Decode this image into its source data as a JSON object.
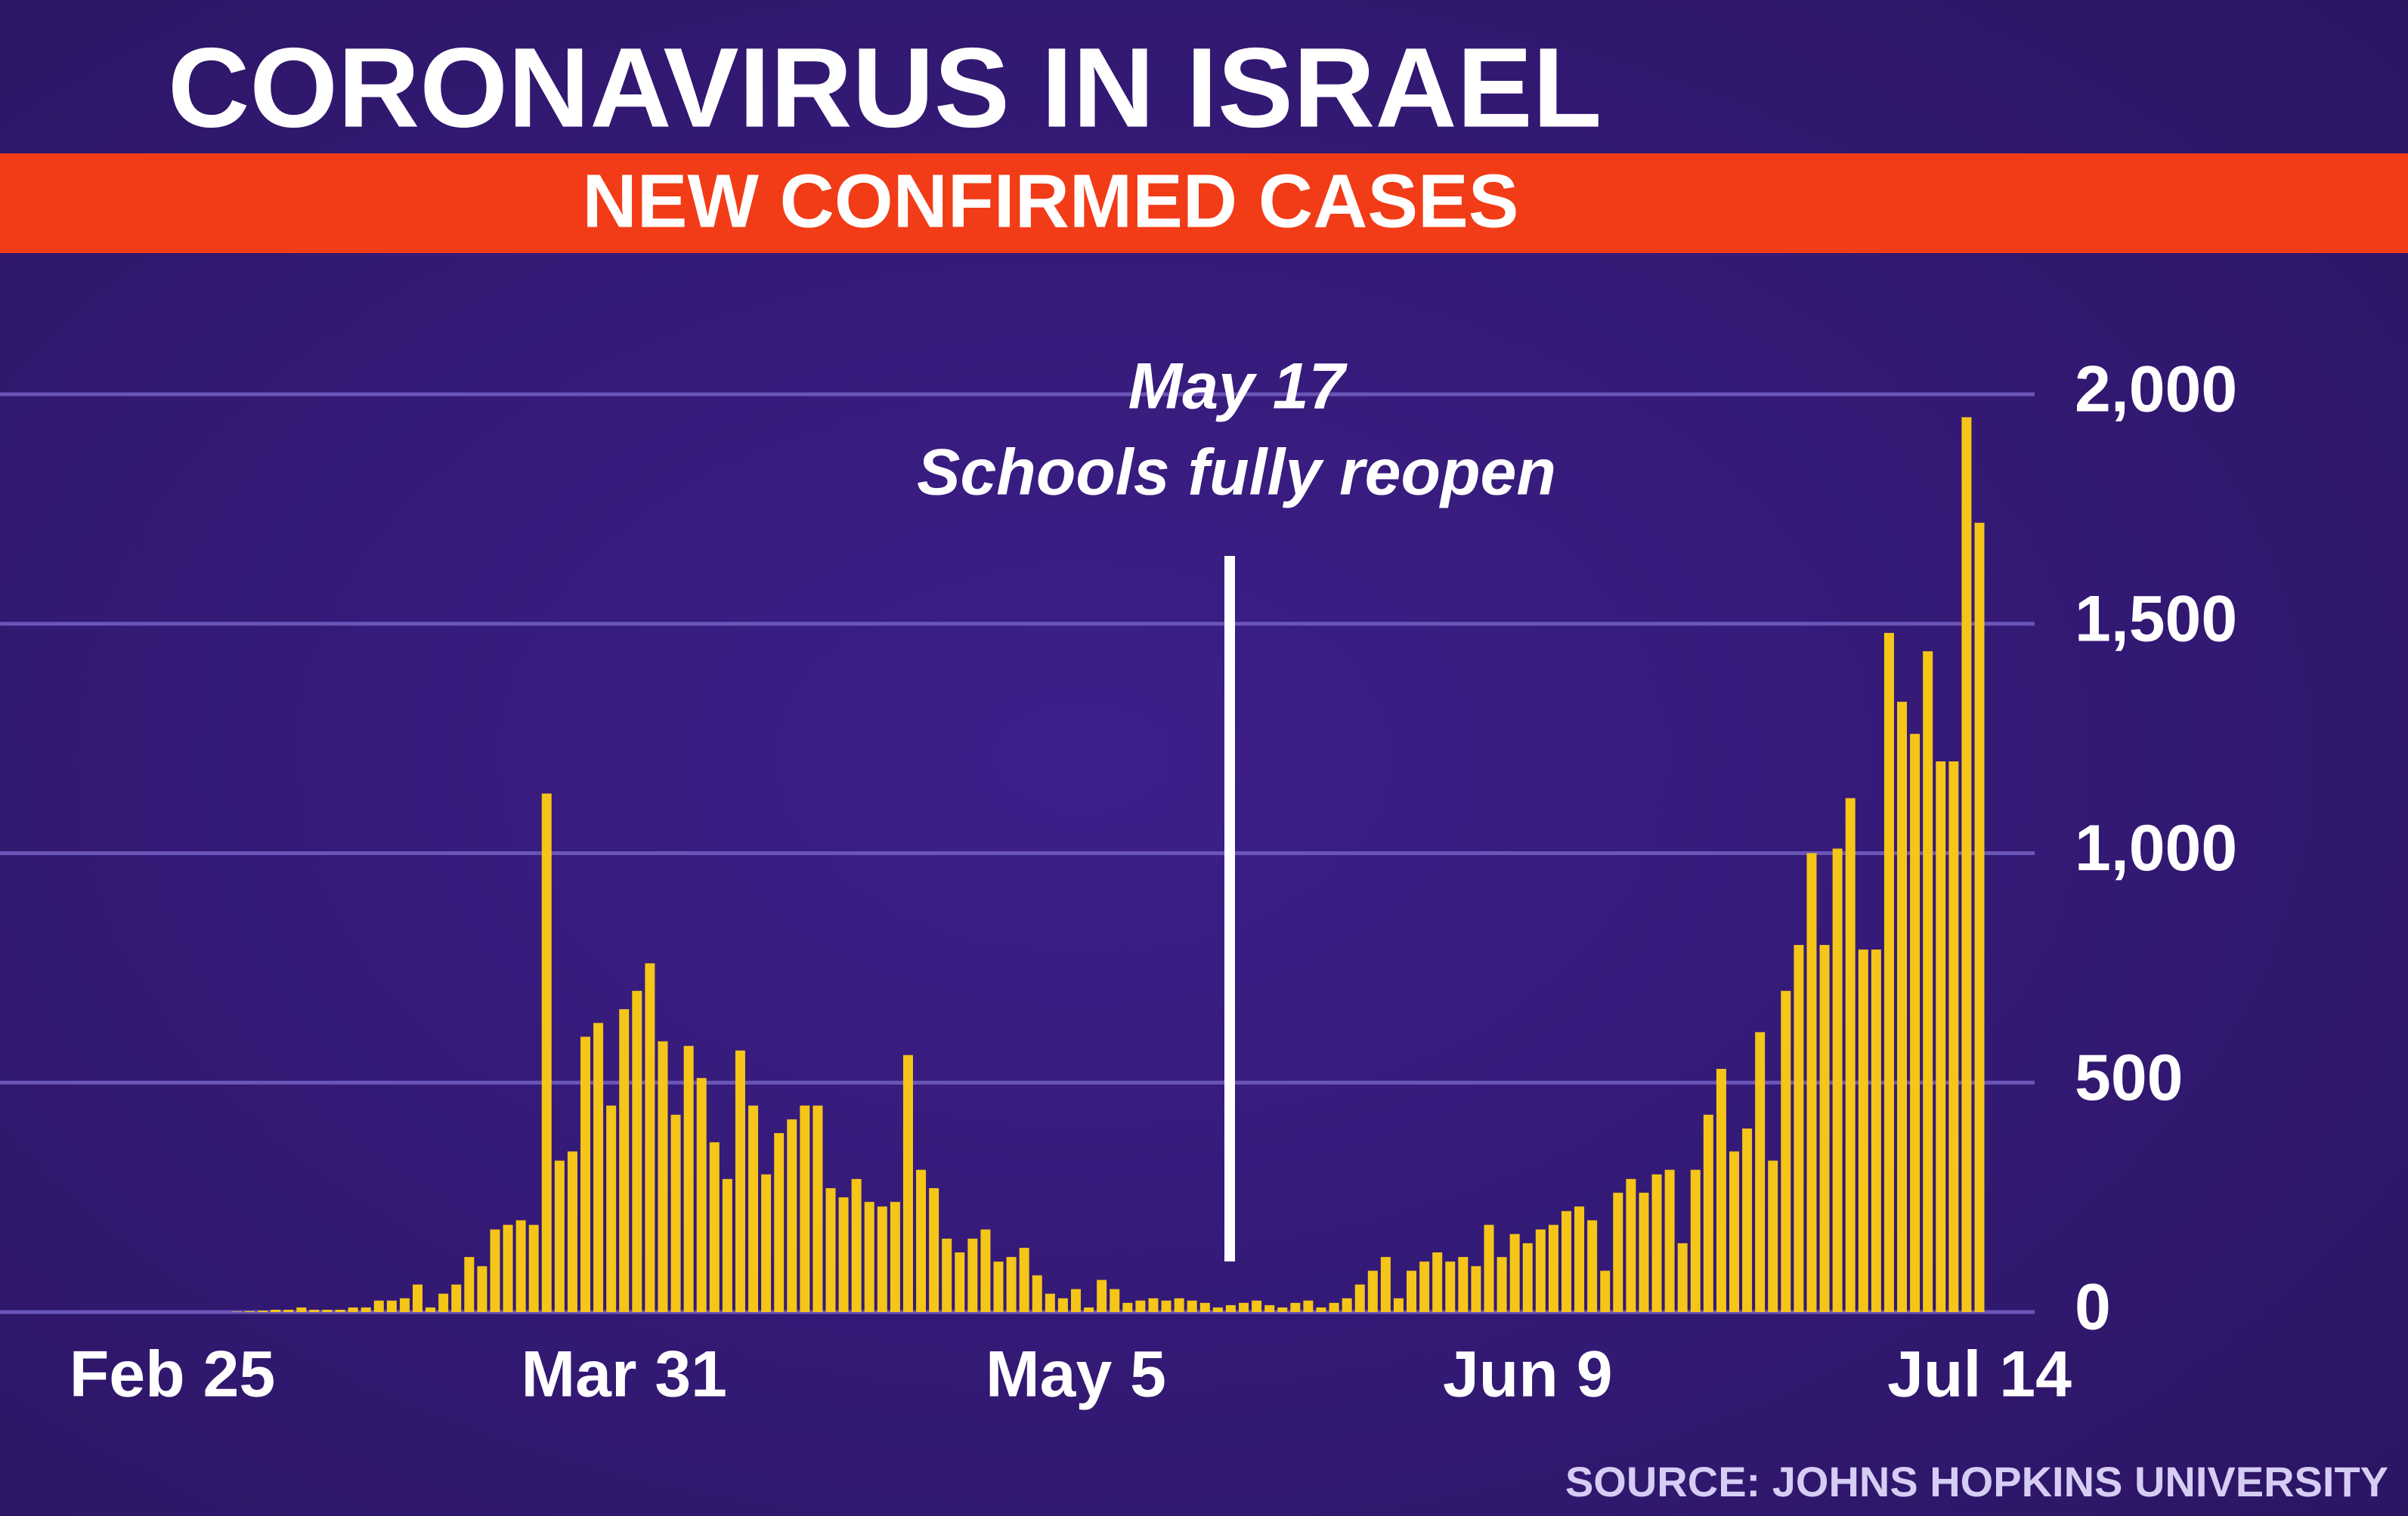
{
  "chart_data": {
    "type": "bar",
    "title": "CORONAVIRUS IN ISRAEL",
    "subtitle": "NEW CONFIRMED CASES",
    "source": "SOURCE: JOHNS HOPKINS UNIVERSITY",
    "annotation": {
      "date": "May 17",
      "text": "Schools fully reopen"
    },
    "color": "#f5c518",
    "grid": true,
    "categories": [
      "Feb 25",
      null,
      null,
      null,
      null,
      null,
      null,
      null,
      null,
      null,
      null,
      null,
      null,
      null,
      null,
      null,
      null,
      null,
      null,
      null,
      null,
      null,
      null,
      null,
      null,
      null,
      null,
      null,
      null,
      null,
      null,
      null,
      null,
      null,
      null,
      "Mar 31",
      null,
      null,
      null,
      null,
      null,
      null,
      null,
      null,
      null,
      null,
      null,
      null,
      null,
      null,
      null,
      null,
      null,
      null,
      null,
      null,
      null,
      null,
      null,
      null,
      null,
      null,
      null,
      null,
      null,
      null,
      null,
      null,
      null,
      null,
      "May 5",
      null,
      null,
      null,
      null,
      null,
      null,
      null,
      null,
      null,
      null,
      null,
      null,
      null,
      null,
      null,
      null,
      null,
      null,
      null,
      null,
      null,
      null,
      null,
      null,
      null,
      null,
      null,
      null,
      null,
      null,
      null,
      null,
      null,
      null,
      "Jun 9",
      null,
      null,
      null,
      null,
      null,
      null,
      null,
      null,
      null,
      null,
      null,
      null,
      null,
      null,
      null,
      null,
      null,
      null,
      null,
      null,
      null,
      null,
      null,
      null,
      null,
      null,
      null,
      null,
      null,
      null,
      null,
      null,
      null,
      null,
      "Jul 14"
    ],
    "values": [
      0,
      0,
      0,
      0,
      0,
      1,
      2,
      3,
      5,
      5,
      10,
      5,
      5,
      5,
      10,
      10,
      25,
      25,
      30,
      60,
      10,
      40,
      60,
      120,
      100,
      180,
      190,
      200,
      190,
      1130,
      330,
      350,
      600,
      630,
      450,
      660,
      700,
      760,
      590,
      430,
      580,
      510,
      370,
      290,
      570,
      450,
      300,
      390,
      420,
      450,
      450,
      270,
      250,
      290,
      240,
      230,
      240,
      560,
      310,
      270,
      160,
      130,
      160,
      180,
      110,
      120,
      140,
      80,
      40,
      30,
      50,
      10,
      70,
      50,
      20,
      25,
      30,
      25,
      30,
      25,
      20,
      10,
      15,
      20,
      25,
      15,
      10,
      20,
      25,
      10,
      20,
      30,
      60,
      90,
      120,
      30,
      90,
      110,
      130,
      110,
      120,
      100,
      190,
      120,
      170,
      150,
      180,
      190,
      220,
      230,
      200,
      90,
      260,
      290,
      260,
      300,
      310,
      150,
      310,
      430,
      530,
      350,
      400,
      610,
      330,
      700,
      800,
      1000,
      800,
      1010,
      1120,
      790,
      790,
      1480,
      1330,
      1260,
      1440,
      1200,
      1200,
      1950,
      1720
    ],
    "ylim": [
      0,
      2000
    ],
    "yticks": [
      0,
      500,
      {
        "value": 1000,
        "label": "1,000"
      },
      {
        "value": 1500,
        "label": "1,500"
      },
      {
        "value": 2000,
        "label": "2,000"
      }
    ]
  }
}
